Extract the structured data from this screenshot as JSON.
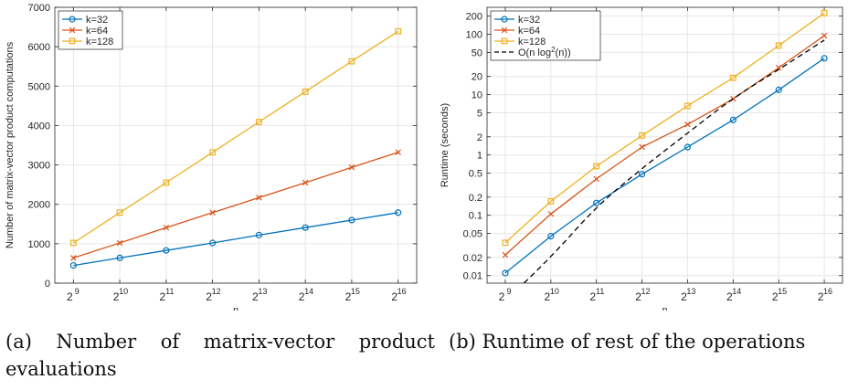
{
  "captions": {
    "a": "(a) Number of matrix-vector product evaluations",
    "b": "(b) Runtime of rest of the operations"
  },
  "chart_data": [
    {
      "type": "line",
      "xlabel": "n",
      "ylabel": "Number of matrix-vector product computations",
      "x_scale": "log2",
      "x": [
        512,
        1024,
        2048,
        4096,
        8192,
        16384,
        32768,
        65536
      ],
      "x_tick_labels": [
        {
          "base": "2",
          "exp": "9"
        },
        {
          "base": "2",
          "exp": "10"
        },
        {
          "base": "2",
          "exp": "11"
        },
        {
          "base": "2",
          "exp": "12"
        },
        {
          "base": "2",
          "exp": "13"
        },
        {
          "base": "2",
          "exp": "14"
        },
        {
          "base": "2",
          "exp": "15"
        },
        {
          "base": "2",
          "exp": "16"
        }
      ],
      "y_ticks": [
        "0",
        "1000",
        "2000",
        "3000",
        "4000",
        "5000",
        "6000",
        "7000"
      ],
      "y_tick_values": [
        0,
        1000,
        2000,
        3000,
        4000,
        5000,
        6000,
        7000
      ],
      "ylim": [
        0,
        7000
      ],
      "grid": true,
      "legend_position": "top-left",
      "series": [
        {
          "name": "k=32",
          "color": "#0072BD",
          "marker": "circle",
          "values": [
            450,
            640,
            830,
            1020,
            1220,
            1410,
            1600,
            1790
          ]
        },
        {
          "name": "k=64",
          "color": "#D95319",
          "marker": "x",
          "values": [
            640,
            1020,
            1410,
            1790,
            2170,
            2550,
            2940,
            3320
          ]
        },
        {
          "name": "k=128",
          "color": "#EDB120",
          "marker": "square",
          "values": [
            1020,
            1790,
            2550,
            3320,
            4090,
            4860,
            5630,
            6390
          ]
        }
      ]
    },
    {
      "type": "line",
      "xlabel": "n",
      "ylabel": "Runtime (seconds)",
      "x_scale": "log2",
      "y_scale": "log",
      "x": [
        512,
        1024,
        2048,
        4096,
        8192,
        16384,
        32768,
        65536
      ],
      "x_tick_labels": [
        {
          "base": "2",
          "exp": "9"
        },
        {
          "base": "2",
          "exp": "10"
        },
        {
          "base": "2",
          "exp": "11"
        },
        {
          "base": "2",
          "exp": "12"
        },
        {
          "base": "2",
          "exp": "13"
        },
        {
          "base": "2",
          "exp": "14"
        },
        {
          "base": "2",
          "exp": "15"
        },
        {
          "base": "2",
          "exp": "16"
        }
      ],
      "y_ticks": [
        "0.01",
        "0.02",
        "0.05",
        "0.1",
        "0.2",
        "0.5",
        "1",
        "2",
        "5",
        "10",
        "20",
        "50",
        "100",
        "200"
      ],
      "y_tick_values": [
        0.01,
        0.02,
        0.05,
        0.1,
        0.2,
        0.5,
        1,
        2,
        5,
        10,
        20,
        50,
        100,
        200
      ],
      "ylim": [
        0.0075,
        280
      ],
      "grid": true,
      "legend_position": "top-left",
      "series": [
        {
          "name": "k=32",
          "color": "#0072BD",
          "marker": "circle",
          "style": "solid",
          "values": [
            0.011,
            0.045,
            0.16,
            0.48,
            1.35,
            3.8,
            12,
            40
          ]
        },
        {
          "name": "k=64",
          "color": "#D95319",
          "marker": "x",
          "style": "solid",
          "values": [
            0.022,
            0.105,
            0.4,
            1.35,
            3.2,
            8.5,
            28,
            95
          ]
        },
        {
          "name": "k=128",
          "color": "#EDB120",
          "marker": "square",
          "style": "solid",
          "values": [
            0.035,
            0.17,
            0.65,
            2.1,
            6.5,
            19,
            65,
            225
          ]
        },
        {
          "name": "O(n log",
          "name_sup": "2",
          "name_tail": "(n))",
          "color": "#000000",
          "marker": "none",
          "style": "dashed",
          "x": [
            680,
            1024,
            2048,
            4096,
            8192,
            16384,
            32768,
            65536
          ],
          "values": [
            0.0075,
            0.02,
            0.14,
            0.6,
            2.3,
            8.8,
            26,
            80
          ]
        }
      ]
    }
  ]
}
